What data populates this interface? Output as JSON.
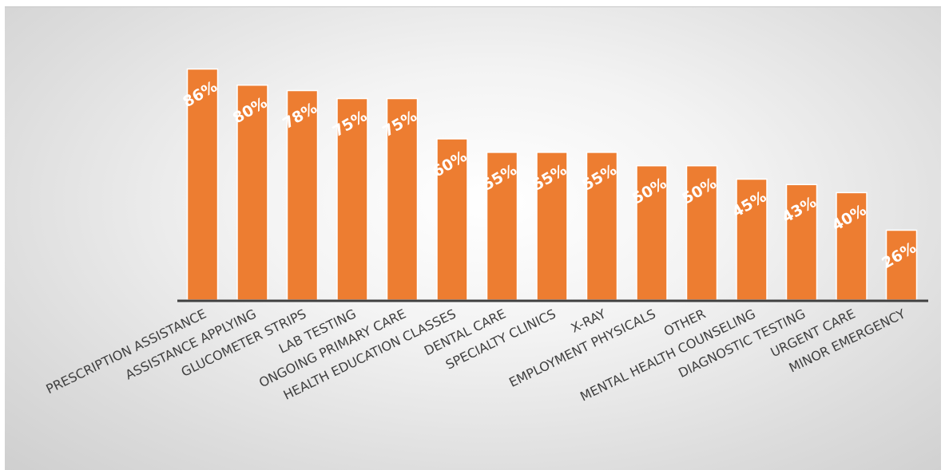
{
  "chart_data": {
    "type": "bar",
    "categories": [
      "PRESCRIPTION ASSISTANCE",
      "ASSISTANCE APPLYING",
      "GLUCOMETER  STRIPS",
      "LAB TESTING",
      "ONGOING PRIMARY CARE",
      "HEALTH EDUCATION CLASSES",
      "DENTAL CARE",
      "SPECIALTY CLINICS",
      "X-RAY",
      "EMPLOYMENT  PHYSICALS",
      "OTHER",
      "MENTAL HEALTH COUNSELING",
      "DIAGNOSTIC TESTING",
      "URGENT CARE",
      "MINOR EMERGENCY"
    ],
    "values": [
      86,
      80,
      78,
      75,
      75,
      60,
      55,
      55,
      55,
      50,
      50,
      45,
      43,
      40,
      26
    ],
    "value_labels": [
      "86%",
      "80%",
      "78%",
      "75%",
      "75%",
      "60%",
      "55%",
      "55%",
      "55%",
      "50%",
      "50%",
      "45%",
      "43%",
      "40%",
      "26%"
    ],
    "ylim": [
      0,
      100
    ],
    "grid": false,
    "bar_color": "#ED7D31",
    "axis_color": "#404040",
    "label_color": "#404040"
  }
}
